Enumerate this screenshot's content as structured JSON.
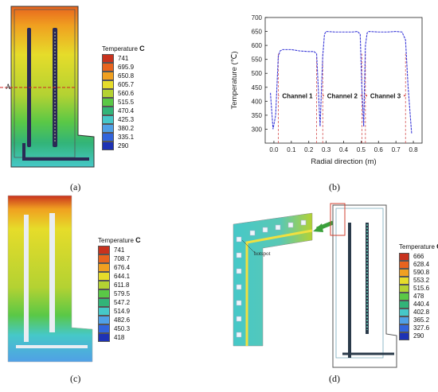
{
  "panels": {
    "a": {
      "label": "(a)",
      "section_marker": "A",
      "legend": {
        "title": "Temperature",
        "unit": "C",
        "values": [
          "741",
          "695.9",
          "650.8",
          "605.7",
          "560.6",
          "515.5",
          "470.4",
          "425.3",
          "380.2",
          "335.1",
          "290"
        ],
        "colors": [
          "#c8321e",
          "#e8641e",
          "#f0a020",
          "#e6dc2a",
          "#b4d232",
          "#5ac846",
          "#32b478",
          "#46c8c8",
          "#50a0e6",
          "#3264dc",
          "#1e32b4"
        ]
      }
    },
    "b": {
      "label": "(b)"
    },
    "c": {
      "label": "(c)",
      "legend": {
        "title": "Temperature",
        "unit": "C",
        "values": [
          "741",
          "708.7",
          "676.4",
          "644.1",
          "611.8",
          "579.5",
          "547.2",
          "514.9",
          "482.6",
          "450.3",
          "418"
        ],
        "colors": [
          "#c8321e",
          "#e8641e",
          "#f0a020",
          "#e6dc2a",
          "#b4d232",
          "#5ac846",
          "#32b478",
          "#46c8c8",
          "#50a0e6",
          "#3264dc",
          "#1e32b4"
        ]
      }
    },
    "d": {
      "label": "(d)",
      "annotation": "hotspot",
      "legend": {
        "title": "Temperature",
        "unit": "C",
        "values": [
          "666",
          "628.4",
          "590.8",
          "553.2",
          "515.6",
          "478",
          "440.4",
          "402.8",
          "365.2",
          "327.6",
          "290"
        ],
        "colors": [
          "#c8321e",
          "#e8641e",
          "#f0a020",
          "#e6dc2a",
          "#b4d232",
          "#5ac846",
          "#32b478",
          "#46c8c8",
          "#50a0e6",
          "#3264dc",
          "#1e32b4"
        ]
      }
    }
  },
  "chart_data": {
    "type": "line",
    "xlabel": "Radial direction (m)",
    "ylabel": "Temperature (℃)",
    "xlim": [
      -0.05,
      0.85
    ],
    "ylim": [
      250,
      700
    ],
    "xticks": [
      "0.0",
      "0.1",
      "0.2",
      "0.3",
      "0.4",
      "0.5",
      "0.6",
      "0.7",
      "0.8"
    ],
    "yticks": [
      "300",
      "350",
      "400",
      "450",
      "500",
      "550",
      "600",
      "650",
      "700"
    ],
    "series": [
      {
        "color": "#3a3ad8",
        "x": [
          -0.02,
          -0.005,
          0.01,
          0.025,
          0.035,
          0.05,
          0.1,
          0.15,
          0.2,
          0.23,
          0.245,
          0.255,
          0.265,
          0.28,
          0.29,
          0.3,
          0.35,
          0.4,
          0.45,
          0.48,
          0.495,
          0.505,
          0.515,
          0.525,
          0.535,
          0.545,
          0.6,
          0.65,
          0.7,
          0.735,
          0.755,
          0.77,
          0.79
        ],
        "y": [
          430,
          300,
          350,
          560,
          580,
          585,
          585,
          580,
          578,
          578,
          570,
          440,
          310,
          560,
          640,
          650,
          648,
          648,
          648,
          650,
          640,
          440,
          310,
          600,
          645,
          650,
          648,
          648,
          650,
          648,
          620,
          450,
          285
        ]
      }
    ],
    "annotations": [
      {
        "text": "Channel 1",
        "x": [
          0.025,
          0.245
        ],
        "y": 420
      },
      {
        "text": "Channel 2",
        "x": [
          0.28,
          0.505
        ],
        "y": 420
      },
      {
        "text": "Channel 3",
        "x": [
          0.525,
          0.755
        ],
        "y": 420
      }
    ],
    "guides_x": [
      0.025,
      0.245,
      0.28,
      0.505,
      0.525,
      0.755
    ],
    "grid": false
  }
}
